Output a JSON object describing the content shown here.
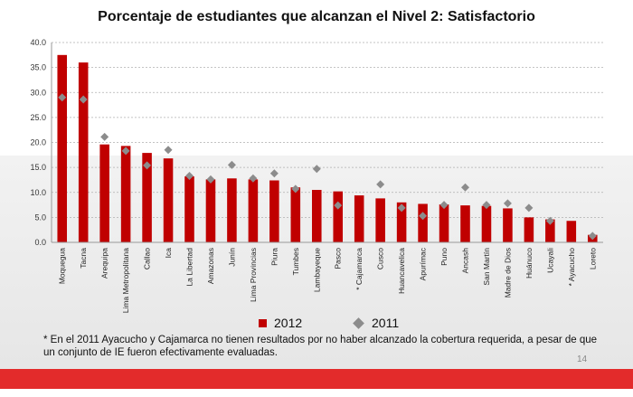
{
  "page": {
    "title": "Porcentaje de estudiantes que alcanzan el Nivel 2: Satisfactorio",
    "footnote": "* En el 2011 Ayacucho y Cajamarca  no tienen resultados por no haber alcanzado la cobertura requerida, a pesar de que un conjunto de IE fueron efectivamente evaluadas.",
    "page_number": "14"
  },
  "colors": {
    "bar_2012": "#c00000",
    "marker_2011": "#8c8c8c",
    "bottom_bar": "#e32b2b"
  },
  "chart_data": {
    "type": "bar",
    "title": "Porcentaje de estudiantes que alcanzan el Nivel 2: Satisfactorio",
    "xlabel": "",
    "ylabel": "",
    "ylim": [
      0,
      40
    ],
    "yticks": [
      "0.0",
      "5.0",
      "10.0",
      "15.0",
      "20.0",
      "25.0",
      "30.0",
      "35.0",
      "40.0"
    ],
    "grid": true,
    "legend_position": "bottom",
    "categories": [
      "Moquegua",
      "Tacna",
      "Arequipa",
      "Lima Metropolitana",
      "Callao",
      "Ica",
      "La Libertad",
      "Amazonas",
      "Junín",
      "Lima Provincias",
      "Piura",
      "Tumbes",
      "Lambayeque",
      "Pasco",
      "* Cajamarca",
      "Cusco",
      "Huancavelica",
      "Apurímac",
      "Puno",
      "Ancash",
      "San Martín",
      "Madre de Dios",
      "Huánuco",
      "Ucayali",
      "* Ayacucho",
      "Loreto"
    ],
    "series": [
      {
        "name": "2012",
        "kind": "bar",
        "values": [
          37.5,
          36.0,
          19.6,
          19.3,
          17.9,
          16.8,
          13.2,
          12.6,
          12.8,
          12.6,
          12.4,
          11.0,
          10.5,
          10.2,
          9.4,
          8.8,
          8.0,
          7.7,
          7.6,
          7.4,
          7.3,
          6.8,
          5.0,
          4.6,
          4.3,
          1.5
        ]
      },
      {
        "name": "2011",
        "kind": "marker",
        "values": [
          29.0,
          28.6,
          21.1,
          18.3,
          15.4,
          18.5,
          13.3,
          12.6,
          15.5,
          12.8,
          13.8,
          10.7,
          14.7,
          7.4,
          null,
          11.6,
          6.9,
          5.3,
          7.5,
          11.0,
          7.5,
          7.8,
          6.9,
          4.3,
          null,
          1.3
        ]
      }
    ]
  }
}
